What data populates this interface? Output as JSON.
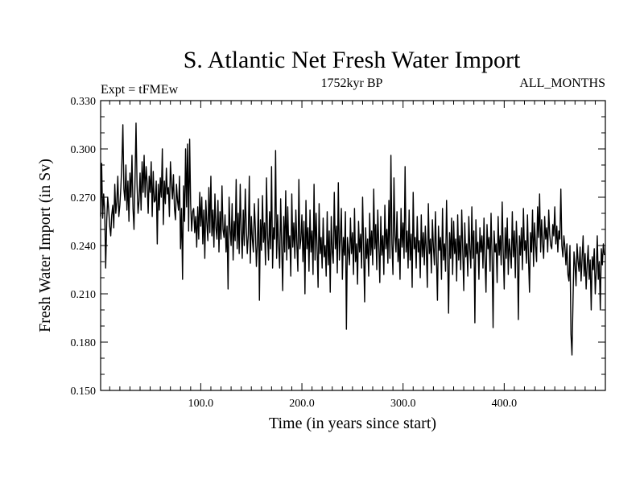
{
  "chart_data": {
    "type": "line",
    "title": "S. Atlantic Net Fresh Water Import",
    "subtitle_left": "Expt = tFMEw",
    "subtitle_center": "1752kyr BP",
    "subtitle_right": "ALL_MONTHS",
    "xlabel": "Time (in years since start)",
    "ylabel": "Fresh Water Import (in Sv)",
    "xlim": [
      1,
      500
    ],
    "ylim": [
      0.15,
      0.33
    ],
    "x_ticks": [
      100,
      200,
      300,
      400
    ],
    "x_tick_labels": [
      "100.0",
      "200.0",
      "300.0",
      "400.0"
    ],
    "y_ticks": [
      0.15,
      0.18,
      0.21,
      0.24,
      0.27,
      0.3,
      0.33
    ],
    "y_tick_labels": [
      "0.150",
      "0.180",
      "0.210",
      "0.240",
      "0.270",
      "0.300",
      "0.330"
    ],
    "grid": false,
    "series": [
      {
        "name": "Fresh Water Import",
        "x_start": 1,
        "x_step": 1,
        "values": [
          0.258,
          0.291,
          0.257,
          0.272,
          0.262,
          0.226,
          0.255,
          0.27,
          0.262,
          0.252,
          0.246,
          0.259,
          0.265,
          0.251,
          0.278,
          0.26,
          0.267,
          0.283,
          0.258,
          0.265,
          0.276,
          0.291,
          0.315,
          0.275,
          0.268,
          0.29,
          0.262,
          0.28,
          0.255,
          0.285,
          0.27,
          0.296,
          0.263,
          0.25,
          0.28,
          0.316,
          0.278,
          0.26,
          0.268,
          0.285,
          0.262,
          0.292,
          0.273,
          0.296,
          0.27,
          0.289,
          0.279,
          0.26,
          0.283,
          0.273,
          0.292,
          0.258,
          0.286,
          0.267,
          0.268,
          0.28,
          0.241,
          0.278,
          0.262,
          0.282,
          0.27,
          0.3,
          0.253,
          0.28,
          0.266,
          0.288,
          0.272,
          0.276,
          0.258,
          0.292,
          0.279,
          0.269,
          0.284,
          0.263,
          0.256,
          0.278,
          0.268,
          0.262,
          0.283,
          0.238,
          0.263,
          0.219,
          0.277,
          0.255,
          0.3,
          0.264,
          0.303,
          0.249,
          0.306,
          0.266,
          0.249,
          0.261,
          0.263,
          0.248,
          0.258,
          0.239,
          0.264,
          0.244,
          0.273,
          0.252,
          0.27,
          0.241,
          0.262,
          0.232,
          0.268,
          0.254,
          0.243,
          0.276,
          0.248,
          0.283,
          0.246,
          0.262,
          0.239,
          0.272,
          0.251,
          0.244,
          0.268,
          0.236,
          0.261,
          0.244,
          0.277,
          0.25,
          0.245,
          0.259,
          0.236,
          0.252,
          0.213,
          0.27,
          0.25,
          0.24,
          0.266,
          0.231,
          0.255,
          0.243,
          0.281,
          0.238,
          0.26,
          0.235,
          0.278,
          0.249,
          0.232,
          0.262,
          0.24,
          0.275,
          0.251,
          0.235,
          0.247,
          0.283,
          0.229,
          0.258,
          0.244,
          0.236,
          0.266,
          0.25,
          0.227,
          0.241,
          0.269,
          0.206,
          0.256,
          0.237,
          0.271,
          0.242,
          0.254,
          0.228,
          0.282,
          0.246,
          0.231,
          0.261,
          0.238,
          0.289,
          0.226,
          0.251,
          0.244,
          0.299,
          0.232,
          0.259,
          0.24,
          0.226,
          0.269,
          0.24,
          0.212,
          0.258,
          0.236,
          0.274,
          0.231,
          0.264,
          0.238,
          0.246,
          0.221,
          0.272,
          0.239,
          0.254,
          0.232,
          0.262,
          0.241,
          0.224,
          0.281,
          0.238,
          0.244,
          0.259,
          0.23,
          0.255,
          0.21,
          0.268,
          0.238,
          0.251,
          0.224,
          0.262,
          0.236,
          0.249,
          0.222,
          0.278,
          0.231,
          0.26,
          0.239,
          0.214,
          0.266,
          0.235,
          0.245,
          0.226,
          0.257,
          0.233,
          0.24,
          0.221,
          0.261,
          0.228,
          0.249,
          0.211,
          0.258,
          0.236,
          0.229,
          0.273,
          0.238,
          0.252,
          0.223,
          0.279,
          0.231,
          0.244,
          0.263,
          0.219,
          0.245,
          0.234,
          0.261,
          0.188,
          0.245,
          0.237,
          0.228,
          0.257,
          0.235,
          0.248,
          0.222,
          0.263,
          0.23,
          0.241,
          0.216,
          0.255,
          0.236,
          0.247,
          0.226,
          0.27,
          0.239,
          0.205,
          0.251,
          0.232,
          0.244,
          0.221,
          0.26,
          0.234,
          0.249,
          0.228,
          0.275,
          0.238,
          0.253,
          0.225,
          0.262,
          0.24,
          0.217,
          0.258,
          0.234,
          0.246,
          0.222,
          0.265,
          0.238,
          0.25,
          0.229,
          0.268,
          0.232,
          0.296,
          0.241,
          0.222,
          0.282,
          0.246,
          0.236,
          0.261,
          0.23,
          0.244,
          0.219,
          0.263,
          0.239,
          0.254,
          0.232,
          0.289,
          0.236,
          0.249,
          0.226,
          0.262,
          0.231,
          0.247,
          0.214,
          0.273,
          0.238,
          0.245,
          0.226,
          0.258,
          0.236,
          0.243,
          0.22,
          0.259,
          0.233,
          0.248,
          0.228,
          0.252,
          0.237,
          0.214,
          0.266,
          0.235,
          0.244,
          0.223,
          0.256,
          0.239,
          0.228,
          0.261,
          0.233,
          0.206,
          0.252,
          0.237,
          0.245,
          0.219,
          0.263,
          0.231,
          0.241,
          0.224,
          0.268,
          0.236,
          0.198,
          0.248,
          0.232,
          0.257,
          0.222,
          0.255,
          0.235,
          0.244,
          0.218,
          0.259,
          0.231,
          0.246,
          0.225,
          0.262,
          0.237,
          0.212,
          0.254,
          0.233,
          0.241,
          0.221,
          0.258,
          0.238,
          0.226,
          0.264,
          0.232,
          0.249,
          0.192,
          0.256,
          0.235,
          0.242,
          0.219,
          0.251,
          0.236,
          0.246,
          0.226,
          0.257,
          0.231,
          0.211,
          0.253,
          0.238,
          0.245,
          0.224,
          0.26,
          0.233,
          0.189,
          0.249,
          0.236,
          0.241,
          0.217,
          0.258,
          0.234,
          0.246,
          0.228,
          0.267,
          0.237,
          0.213,
          0.251,
          0.232,
          0.257,
          0.222,
          0.244,
          0.236,
          0.226,
          0.261,
          0.233,
          0.249,
          0.22,
          0.255,
          0.238,
          0.194,
          0.246,
          0.234,
          0.251,
          0.225,
          0.263,
          0.237,
          0.243,
          0.229,
          0.259,
          0.232,
          0.211,
          0.248,
          0.236,
          0.262,
          0.227,
          0.254,
          0.24,
          0.23,
          0.264,
          0.245,
          0.272,
          0.236,
          0.256,
          0.241,
          0.232,
          0.258,
          0.244,
          0.251,
          0.236,
          0.262,
          0.247,
          0.24,
          0.238,
          0.253,
          0.246,
          0.264,
          0.241,
          0.252,
          0.236,
          0.249,
          0.244,
          0.275,
          0.24,
          0.233,
          0.246,
          0.239,
          0.228,
          0.241,
          0.222,
          0.218,
          0.24,
          0.185,
          0.172,
          0.205,
          0.236,
          0.228,
          0.215,
          0.241,
          0.23,
          0.224,
          0.239,
          0.218,
          0.232,
          0.246,
          0.221,
          0.235,
          0.213,
          0.228,
          0.24,
          0.219,
          0.231,
          0.2,
          0.233,
          0.225,
          0.238,
          0.21,
          0.224,
          0.246,
          0.219,
          0.23,
          0.2,
          0.238,
          0.228,
          0.241,
          0.234
        ]
      }
    ]
  }
}
